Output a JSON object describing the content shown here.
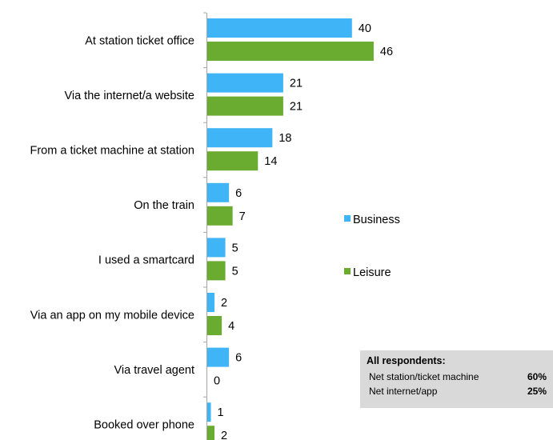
{
  "chart_data": {
    "type": "bar",
    "orientation": "horizontal",
    "categories": [
      "At station ticket office",
      "Via the internet/a website",
      "From a ticket machine at station",
      "On the train",
      "I used a smartcard",
      "Via an app on my mobile device",
      "Via travel agent",
      "Booked over phone"
    ],
    "series": [
      {
        "name": "Business",
        "color": "#3fb5f7",
        "values": [
          40,
          21,
          18,
          6,
          5,
          2,
          6,
          1
        ]
      },
      {
        "name": "Leisure",
        "color": "#6aac2f",
        "values": [
          46,
          21,
          14,
          7,
          5,
          4,
          0,
          2
        ]
      }
    ],
    "title": "",
    "xlabel": "",
    "ylabel": "",
    "xlim": [
      0,
      100
    ],
    "grid": false,
    "data_labels": true,
    "legend_position": "right"
  },
  "summary": {
    "title": "All respondents:",
    "rows": [
      {
        "label": "Net station/ticket  machine",
        "value": "60%"
      },
      {
        "label": "Net internet/app",
        "value": "25%"
      }
    ]
  }
}
